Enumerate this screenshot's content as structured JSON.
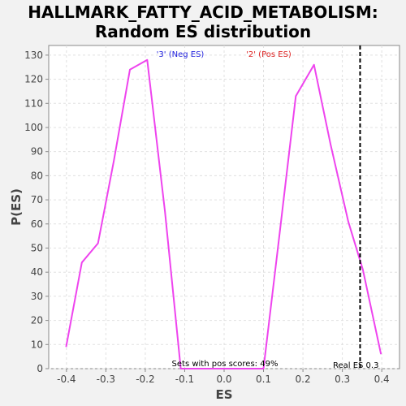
{
  "chart_data": {
    "type": "line",
    "title_lines": [
      "HALLMARK_FATTY_ACID_METABOLISM:",
      "Random ES distribution"
    ],
    "xlabel": "ES",
    "ylabel": "P(ES)",
    "xlim": [
      -0.445,
      0.445
    ],
    "ylim": [
      0,
      134
    ],
    "xticks": [
      -0.4,
      -0.3,
      -0.2,
      -0.1,
      0.0,
      0.1,
      0.2,
      0.3,
      0.4
    ],
    "xtick_labels": [
      "-0.4",
      "-0.3",
      "-0.2",
      "-0.1",
      "0.0",
      "0.1",
      "0.2",
      "0.3",
      "0.4"
    ],
    "yticks": [
      0,
      10,
      20,
      30,
      40,
      50,
      60,
      70,
      80,
      90,
      100,
      110,
      120,
      130
    ],
    "ytick_labels": [
      "0",
      "10",
      "20",
      "30",
      "40",
      "50",
      "60",
      "70",
      "80",
      "90",
      "100",
      "110",
      "120",
      "130"
    ],
    "grid": true,
    "series": [
      {
        "color": "#ee44ee",
        "x": [
          -0.401,
          -0.361,
          -0.32,
          -0.28,
          -0.239,
          -0.195,
          -0.15,
          -0.11,
          -0.07,
          -0.03,
          0.01,
          0.05,
          0.1,
          0.14,
          0.182,
          0.228,
          0.27,
          0.315,
          0.352,
          0.398
        ],
        "y": [
          9,
          44,
          52,
          86,
          124,
          128,
          65,
          0,
          0,
          0,
          0,
          0,
          0,
          55,
          113,
          126,
          93,
          61,
          41,
          6
        ]
      }
    ],
    "real_es": {
      "x": 0.345,
      "label": "Real ES 0.3"
    },
    "annotations": {
      "neg_label": "'3' (Neg ES)",
      "neg_color": "#2222dd",
      "pos_label": "'2' (Pos ES)",
      "pos_color": "#dd2222",
      "pos_scores_label": "Sets with pos scores: 49%"
    }
  }
}
